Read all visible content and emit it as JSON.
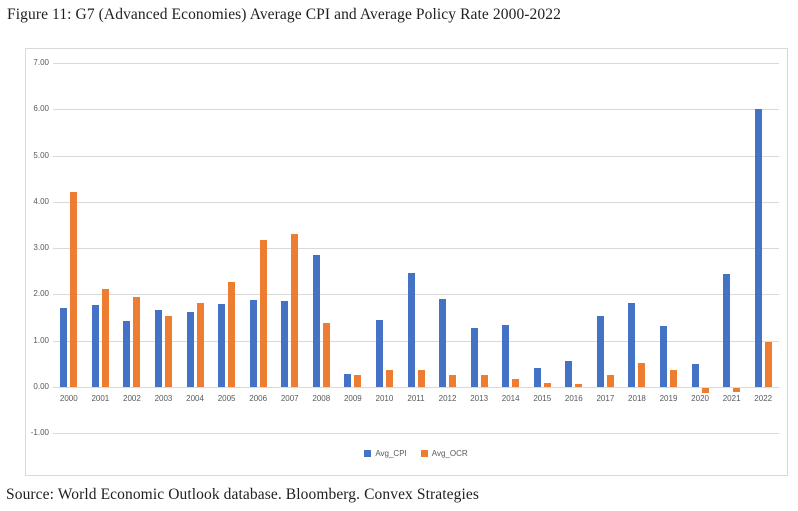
{
  "figure_title": "Figure 11: G7 (Advanced Economies) Average CPI and Average Policy Rate 2000-2022",
  "source_text": "Source: World Economic Outlook database. Bloomberg. Convex Strategies",
  "colors": {
    "cpi_bar": "#4472C4",
    "ocr_bar": "#ED7D31",
    "gridline": "#D9D9D9",
    "axis_label": "#595959",
    "chart_border": "#D9D9D9",
    "text": "#1F1F1F"
  },
  "chart_data": {
    "type": "bar",
    "title": "",
    "xlabel": "",
    "ylabel": "",
    "grid": true,
    "legend_position": "bottom",
    "ylim": [
      -1,
      7
    ],
    "ytick_labels": [
      "7.00",
      "6.00",
      "5.00",
      "4.00",
      "3.00",
      "2.00",
      "1.00",
      "0.00",
      "-1.00"
    ],
    "categories": [
      "2000",
      "2001",
      "2002",
      "2003",
      "2004",
      "2005",
      "2006",
      "2007",
      "2008",
      "2009",
      "2010",
      "2011",
      "2012",
      "2013",
      "2014",
      "2015",
      "2016",
      "2017",
      "2018",
      "2019",
      "2020",
      "2021",
      "2022"
    ],
    "series": [
      {
        "name": "Avg_CPI",
        "color": "#4472C4",
        "values": [
          1.7,
          1.76,
          1.42,
          1.66,
          1.61,
          1.78,
          1.87,
          1.85,
          2.85,
          0.28,
          1.44,
          2.46,
          1.9,
          1.26,
          1.33,
          0.4,
          0.55,
          1.52,
          1.81,
          1.31,
          0.5,
          2.43,
          6.0
        ]
      },
      {
        "name": "Avg_OCR",
        "color": "#ED7D31",
        "values": [
          4.22,
          2.12,
          1.93,
          1.52,
          1.82,
          2.27,
          3.17,
          3.31,
          1.38,
          0.26,
          0.36,
          0.36,
          0.25,
          0.25,
          0.16,
          0.09,
          0.05,
          0.25,
          0.52,
          0.37,
          -0.12,
          -0.1,
          0.96
        ]
      }
    ]
  }
}
